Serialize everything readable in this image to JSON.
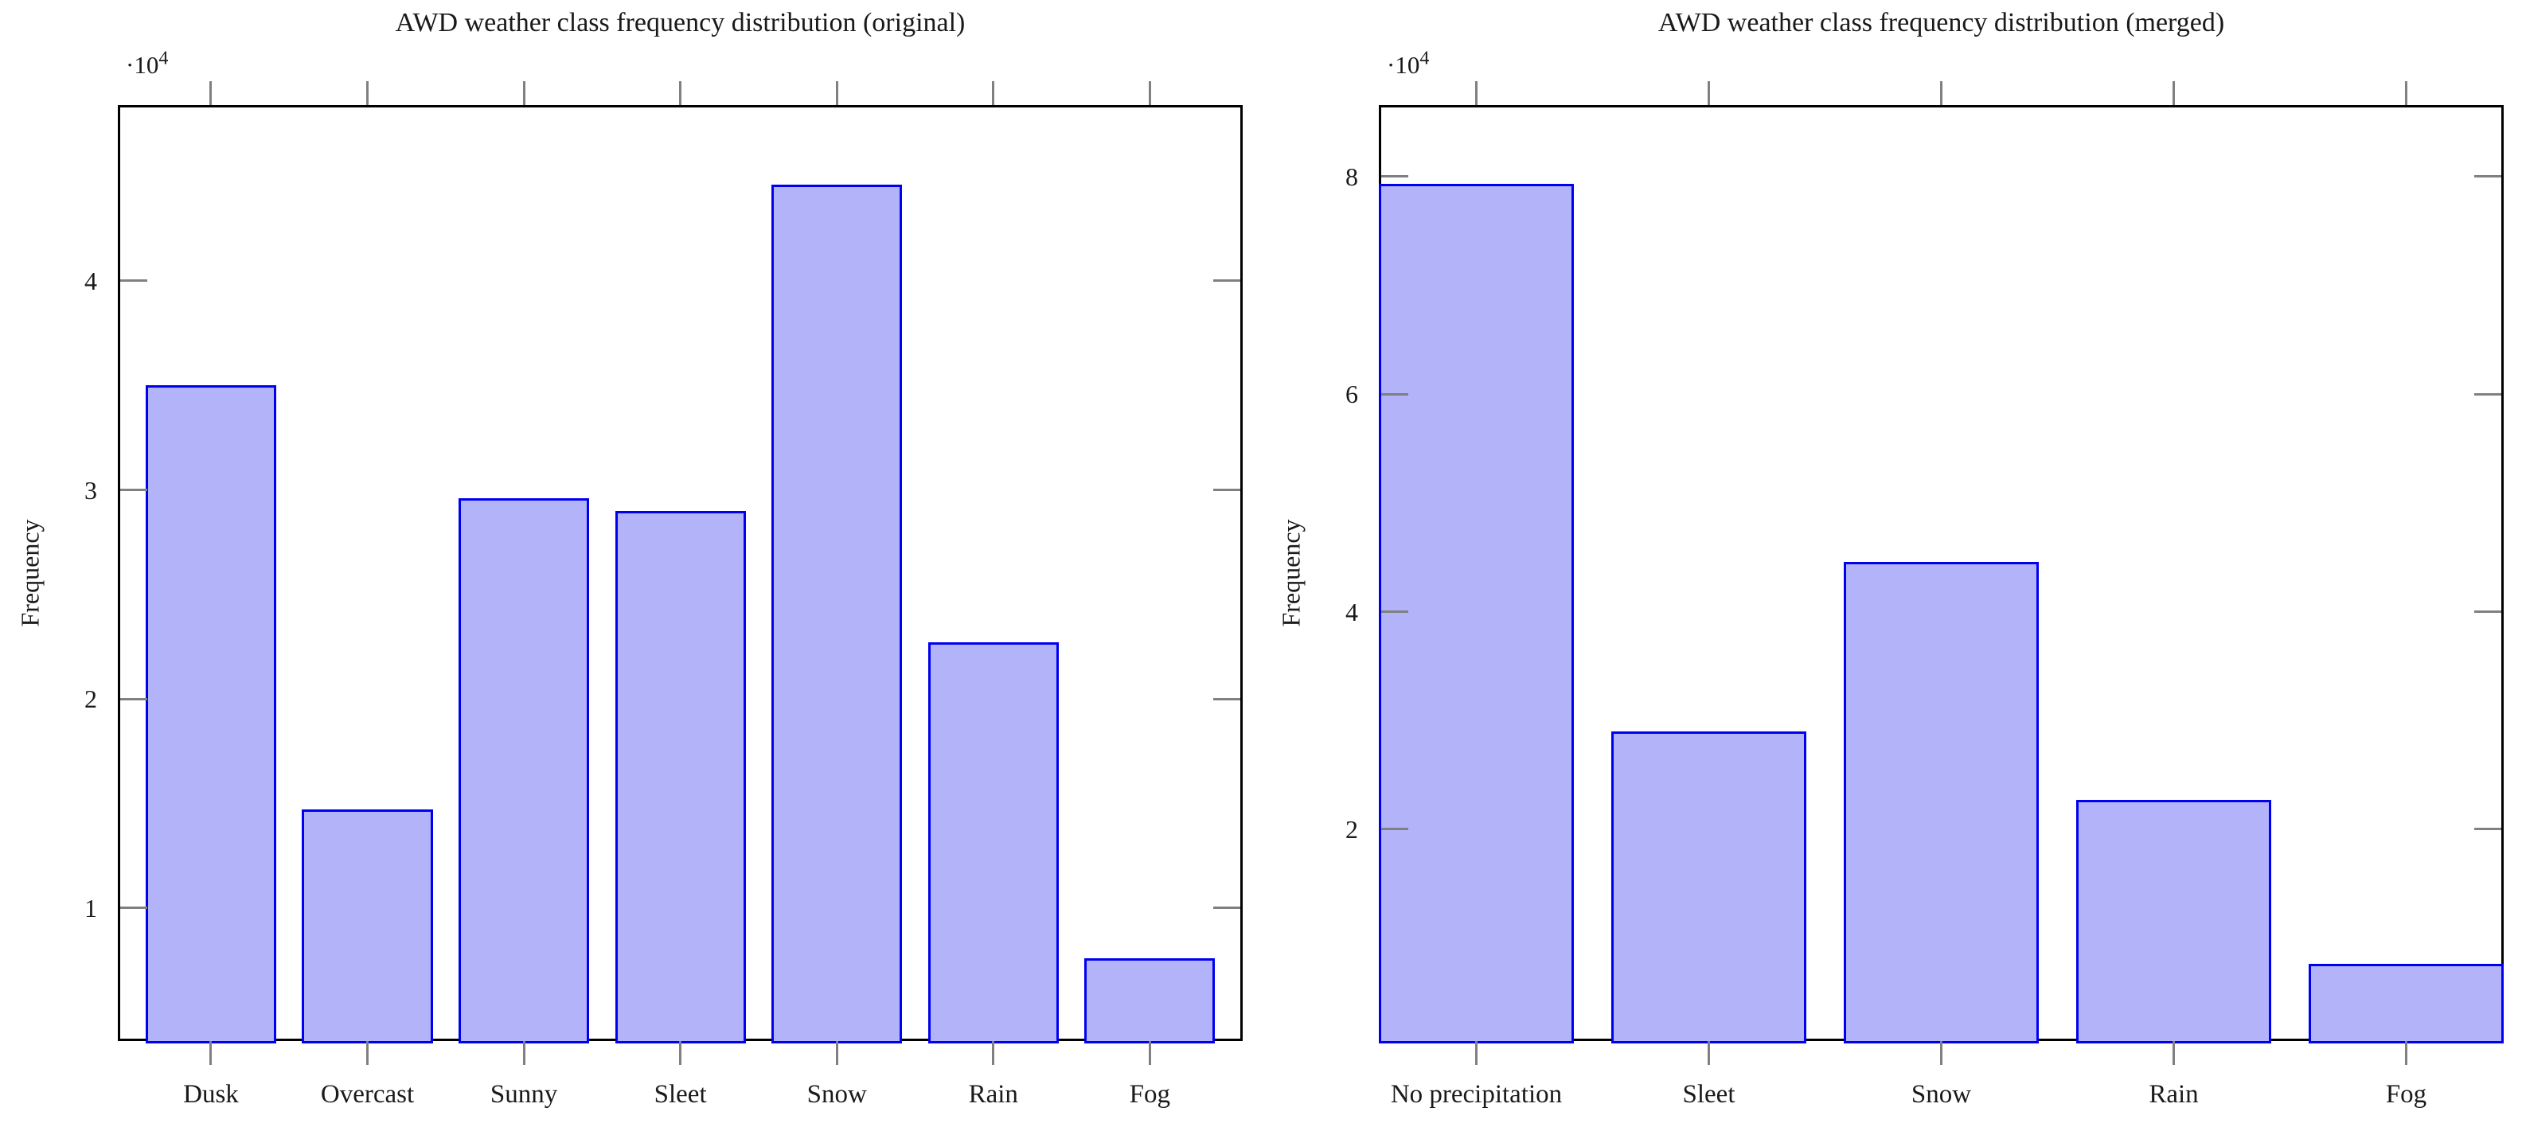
{
  "figure": {
    "background": "#ffffff",
    "bar_fill": "#b3b3fa",
    "bar_border": "#0000f0",
    "axis_color": "#000000",
    "tick_color": "#808080",
    "text_color": "#1a1a1a"
  },
  "chart_data": [
    {
      "type": "bar",
      "title": "AWD weather class frequency distribution (original)",
      "xlabel": "",
      "ylabel": "Frequency",
      "y_scale_base": "·10",
      "y_scale_exp": "4",
      "categories": [
        "Dusk",
        "Overcast",
        "Sunny",
        "Sleet",
        "Snow",
        "Rain",
        "Fog"
      ],
      "values": [
        35000,
        14700,
        29600,
        29000,
        44600,
        22700,
        7600
      ],
      "yticks": [
        {
          "value": 10000,
          "label": "1"
        },
        {
          "value": 20000,
          "label": "2"
        },
        {
          "value": 30000,
          "label": "3"
        },
        {
          "value": 40000,
          "label": "4"
        }
      ],
      "ylim": [
        3750,
        48300
      ],
      "grid": false,
      "legend_position": "none"
    },
    {
      "type": "bar",
      "title": "AWD weather class frequency distribution (merged)",
      "xlabel": "",
      "ylabel": "Frequency",
      "y_scale_base": "·10",
      "y_scale_exp": "4",
      "categories": [
        "No precipitation",
        "Sleet",
        "Snow",
        "Rain",
        "Fog"
      ],
      "values": [
        79300,
        29000,
        44600,
        22700,
        7600
      ],
      "yticks": [
        {
          "value": 20000,
          "label": "2"
        },
        {
          "value": 40000,
          "label": "4"
        },
        {
          "value": 60000,
          "label": "6"
        },
        {
          "value": 80000,
          "label": "8"
        }
      ],
      "ylim": [
        760,
        86350
      ],
      "grid": false,
      "legend_position": "none"
    }
  ]
}
